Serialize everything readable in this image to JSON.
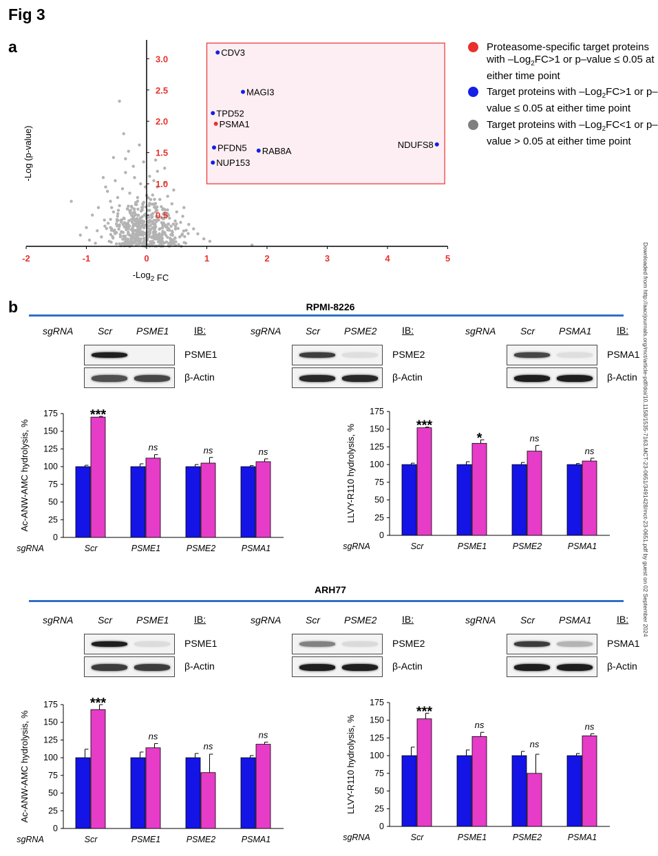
{
  "figure_label": "Fig 3",
  "panel_a": {
    "label": "a",
    "legend": [
      {
        "color": "#e8312c",
        "text": "Proteasome-specific target proteins with –Log₂FC>1 or p–value ≤ 0.05 at either time point"
      },
      {
        "color": "#1420e6",
        "text": "Target proteins with –Log₂FC>1 or p–value ≤ 0.05 at either time point"
      },
      {
        "color": "#7f7f7f",
        "text": "Target proteins with –Log₂FC<1 or p–value > 0.05 at either time point"
      }
    ]
  },
  "panel_b": {
    "label": "b",
    "cell_lines": [
      {
        "name": "RPMI-8226",
        "blots": [
          {
            "sgrna_label": "sgRNA",
            "lanes": [
              "Scr",
              "PSME1"
            ],
            "ib_label": "IB:",
            "proteins": [
              "PSME1",
              "β-Actin"
            ],
            "band_strength": [
              [
                1.0,
                0.0
              ],
              [
                0.75,
                0.8
              ]
            ]
          },
          {
            "sgrna_label": "sgRNA",
            "lanes": [
              "Scr",
              "PSME2"
            ],
            "ib_label": "IB:",
            "proteins": [
              "PSME2",
              "β-Actin"
            ],
            "band_strength": [
              [
                0.85,
                0.04
              ],
              [
                0.95,
                0.95
              ]
            ]
          },
          {
            "sgrna_label": "sgRNA",
            "lanes": [
              "Scr",
              "PSMA1"
            ],
            "ib_label": "IB:",
            "proteins": [
              "PSMA1",
              "β-Actin"
            ],
            "band_strength": [
              [
                0.8,
                0.04
              ],
              [
                1.0,
                1.0
              ]
            ]
          }
        ]
      },
      {
        "name": "ARH77",
        "blots": [
          {
            "sgrna_label": "sgRNA",
            "lanes": [
              "Scr",
              "PSME1"
            ],
            "ib_label": "IB:",
            "proteins": [
              "PSME1",
              "β-Actin"
            ],
            "band_strength": [
              [
                1.0,
                0.05
              ],
              [
                0.85,
                0.85
              ]
            ]
          },
          {
            "sgrna_label": "sgRNA",
            "lanes": [
              "Scr",
              "PSME2"
            ],
            "ib_label": "IB:",
            "proteins": [
              "PSME2",
              "β-Actin"
            ],
            "band_strength": [
              [
                0.5,
                0.06
              ],
              [
                1.0,
                1.0
              ]
            ]
          },
          {
            "sgrna_label": "sgRNA",
            "lanes": [
              "Scr",
              "PSMA1"
            ],
            "ib_label": "IB:",
            "proteins": [
              "PSMA1",
              "β-Actin"
            ],
            "band_strength": [
              [
                0.85,
                0.25
              ],
              [
                1.0,
                1.0
              ]
            ]
          }
        ]
      }
    ]
  },
  "watermark": "Downloaded from http://aacrjournals.org/mct/article-pdf/doi/10.1158/1535-7163.MCT-23-0651/3491428/mct-23-0651.pdf by guest on 02 September 2024",
  "chart_data": [
    {
      "id": "volcano",
      "type": "scatter",
      "xlabel": "-Log₂ FC",
      "ylabel": "-Log (p-value)",
      "xlim": [
        -2,
        5
      ],
      "ylim": [
        0,
        3.3
      ],
      "xticks": [
        -2,
        -1,
        0,
        1,
        2,
        3,
        4,
        5
      ],
      "yticks": [
        0.5,
        1.0,
        1.5,
        2.0,
        2.5,
        3.0
      ],
      "tick_label_color": "#e8312c",
      "highlight_box": {
        "x": [
          1.0,
          4.95
        ],
        "y": [
          1.0,
          3.25
        ],
        "border": "#e8312c",
        "fill": "#fdeef3"
      },
      "background_point_color": "#b3b3b3",
      "background_points": [
        [
          -0.45,
          2.32
        ],
        [
          -0.38,
          1.8
        ],
        [
          -1.25,
          0.72
        ],
        [
          -0.3,
          1.52
        ],
        [
          -0.12,
          1.62
        ],
        [
          -0.55,
          1.42
        ],
        [
          -0.05,
          1.35
        ],
        [
          0.15,
          1.38
        ],
        [
          -0.72,
          1.1
        ],
        [
          -0.22,
          1.28
        ],
        [
          0.05,
          1.12
        ],
        [
          0.3,
          1.02
        ],
        [
          -0.52,
          1.05
        ],
        [
          -0.35,
          1.18
        ],
        [
          -0.1,
          1.0
        ],
        [
          0.18,
          0.95
        ],
        [
          -0.65,
          0.88
        ],
        [
          0.35,
          0.8
        ],
        [
          -0.8,
          0.62
        ],
        [
          0.5,
          0.55
        ],
        [
          -0.4,
          0.92
        ],
        [
          0.22,
          0.75
        ],
        [
          -0.28,
          0.85
        ],
        [
          0.1,
          0.82
        ],
        [
          -0.15,
          0.78
        ],
        [
          0.42,
          0.68
        ],
        [
          -0.6,
          0.72
        ],
        [
          -0.45,
          0.65
        ],
        [
          0.6,
          0.48
        ],
        [
          -0.9,
          0.5
        ],
        [
          0.28,
          0.6
        ],
        [
          -0.18,
          0.7
        ],
        [
          0.05,
          0.68
        ],
        [
          -0.32,
          0.6
        ],
        [
          0.15,
          0.55
        ],
        [
          -0.55,
          0.55
        ],
        [
          0.38,
          0.45
        ],
        [
          -0.7,
          0.42
        ],
        [
          0.7,
          0.35
        ],
        [
          -1.0,
          0.3
        ],
        [
          0.85,
          0.2
        ],
        [
          -1.1,
          0.18
        ],
        [
          1.75,
          0.02
        ],
        [
          1.05,
          0.08
        ],
        [
          -0.25,
          0.5
        ],
        [
          0.0,
          0.45
        ],
        [
          -0.12,
          0.4
        ],
        [
          0.25,
          0.38
        ],
        [
          -0.42,
          0.4
        ],
        [
          0.48,
          0.32
        ],
        [
          -0.6,
          0.3
        ],
        [
          -0.05,
          0.3
        ],
        [
          0.12,
          0.28
        ],
        [
          -0.3,
          0.28
        ],
        [
          0.3,
          0.22
        ],
        [
          -0.5,
          0.22
        ],
        [
          0.55,
          0.15
        ],
        [
          -0.75,
          0.15
        ],
        [
          -0.2,
          0.2
        ],
        [
          0.02,
          0.18
        ],
        [
          0.2,
          0.12
        ],
        [
          -0.38,
          0.12
        ],
        [
          0.4,
          0.08
        ],
        [
          -0.62,
          0.08
        ],
        [
          -0.1,
          0.1
        ],
        [
          0.08,
          0.06
        ],
        [
          -0.25,
          0.05
        ],
        [
          0.25,
          0.04
        ],
        [
          -0.45,
          0.04
        ],
        [
          0.65,
          0.05
        ],
        [
          -0.85,
          0.05
        ],
        [
          0.95,
          0.12
        ],
        [
          -0.95,
          0.1
        ],
        [
          0.78,
          0.28
        ],
        [
          -0.82,
          0.25
        ],
        [
          0.18,
          1.2
        ],
        [
          -0.02,
          0.95
        ],
        [
          -0.48,
          0.78
        ],
        [
          0.3,
          1.25
        ],
        [
          -0.68,
          0.95
        ],
        [
          0.45,
          0.9
        ],
        [
          -0.2,
          1.1
        ],
        [
          0.12,
          1.05
        ],
        [
          -0.35,
          1.4
        ],
        [
          0.08,
          0.5
        ],
        [
          -0.08,
          0.62
        ],
        [
          0.35,
          0.52
        ],
        [
          -0.58,
          0.62
        ],
        [
          0.62,
          0.62
        ],
        [
          -0.2,
          0.55
        ],
        [
          0.2,
          0.42
        ]
      ],
      "labeled_points": [
        {
          "name": "CDV3",
          "x": 1.18,
          "y": 3.1,
          "category": "target"
        },
        {
          "name": "MAGI3",
          "x": 1.6,
          "y": 2.47,
          "category": "target"
        },
        {
          "name": "TPD52",
          "x": 1.1,
          "y": 2.13,
          "category": "target"
        },
        {
          "name": "PSMA1",
          "x": 1.15,
          "y": 1.96,
          "category": "proteasome"
        },
        {
          "name": "PFDN5",
          "x": 1.12,
          "y": 1.58,
          "category": "target"
        },
        {
          "name": "RAB8A",
          "x": 1.86,
          "y": 1.53,
          "category": "target"
        },
        {
          "name": "NUP153",
          "x": 1.1,
          "y": 1.34,
          "category": "target"
        },
        {
          "name": "NDUFS8",
          "x": 4.82,
          "y": 1.63,
          "category": "target"
        }
      ],
      "category_colors": {
        "target": "#1420e6",
        "proteasome": "#e8312c"
      }
    },
    {
      "id": "rpmi-anw",
      "type": "bar",
      "ylabel": "Ac-ANW-AMC hydrolysis, %",
      "x_prefix": "sgRNA",
      "categories": [
        "Scr",
        "PSME1",
        "PSME2",
        "PSMA1"
      ],
      "ylim": [
        0,
        175
      ],
      "yticks": [
        0,
        25,
        50,
        75,
        100,
        125,
        150,
        175
      ],
      "series": [
        {
          "values": [
            100,
            100,
            100,
            100
          ],
          "errors": [
            2,
            4,
            3,
            1.5
          ],
          "color": "#1414e6"
        },
        {
          "values": [
            170,
            112,
            105,
            107
          ],
          "errors": [
            1,
            5,
            8,
            4
          ],
          "color": "#e63cc8"
        }
      ],
      "annotations": [
        "***",
        "ns",
        "ns",
        "ns"
      ]
    },
    {
      "id": "rpmi-llvy",
      "type": "bar",
      "ylabel": "LLVY-R110 hydrolysis, %",
      "x_prefix": "sgRNA",
      "categories": [
        "Scr",
        "PSME1",
        "PSME2",
        "PSMA1"
      ],
      "ylim": [
        0,
        175
      ],
      "yticks": [
        0,
        25,
        50,
        75,
        100,
        125,
        150,
        175
      ],
      "series": [
        {
          "values": [
            100,
            100,
            100,
            100
          ],
          "errors": [
            2,
            4,
            3,
            1.5
          ],
          "color": "#1414e6"
        },
        {
          "values": [
            152,
            130,
            119,
            105
          ],
          "errors": [
            1,
            5,
            8,
            4
          ],
          "color": "#e63cc8"
        }
      ],
      "annotations": [
        "***",
        "*",
        "ns",
        "ns"
      ]
    },
    {
      "id": "arh77-anw",
      "type": "bar",
      "ylabel": "Ac-ANW-AMC hydrolysis, %",
      "x_prefix": "sgRNA",
      "categories": [
        "Scr",
        "PSME1",
        "PSME2",
        "PSMA1"
      ],
      "ylim": [
        0,
        175
      ],
      "yticks": [
        0,
        25,
        50,
        75,
        100,
        125,
        150,
        175
      ],
      "series": [
        {
          "values": [
            100,
            100,
            100,
            100
          ],
          "errors": [
            12,
            8,
            6,
            3
          ],
          "color": "#1414e6"
        },
        {
          "values": [
            168,
            114,
            79,
            119
          ],
          "errors": [
            7,
            6,
            26,
            3
          ],
          "color": "#e63cc8"
        }
      ],
      "annotations": [
        "***",
        "ns",
        "ns",
        "ns"
      ]
    },
    {
      "id": "arh77-llvy",
      "type": "bar",
      "ylabel": "LLVY-R110 hydrolysis, %",
      "x_prefix": "sgRNA",
      "categories": [
        "Scr",
        "PSME1",
        "PSME2",
        "PSMA1"
      ],
      "ylim": [
        0,
        175
      ],
      "yticks": [
        0,
        25,
        50,
        75,
        100,
        125,
        150,
        175
      ],
      "series": [
        {
          "values": [
            100,
            100,
            100,
            100
          ],
          "errors": [
            12,
            8,
            6,
            3
          ],
          "color": "#1414e6"
        },
        {
          "values": [
            152,
            127,
            75,
            128
          ],
          "errors": [
            8,
            6,
            27,
            3
          ],
          "color": "#e63cc8"
        }
      ],
      "annotations": [
        "***",
        "ns",
        "ns",
        "ns"
      ]
    }
  ]
}
